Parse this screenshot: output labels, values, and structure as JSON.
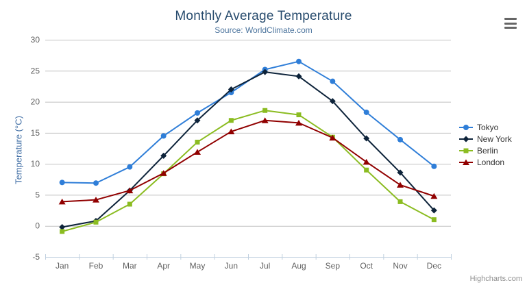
{
  "header": {
    "title": "Monthly Average Temperature",
    "subtitle": "Source: WorldClimate.com"
  },
  "credits_label": "Highcharts.com",
  "ui_colors": {
    "title": "#274b6d",
    "subtitle": "#4d759e",
    "axis_label": "#606060",
    "y_axis_title": "#4572a7",
    "grid_line": "#c0c0c0",
    "axis_line": "#c0d0e0",
    "legend_text": "#333333",
    "credits": "#909090",
    "export_icon": "#666666"
  },
  "chart_data": {
    "type": "line",
    "title": "Monthly Average Temperature",
    "subtitle": "Source: WorldClimate.com",
    "xlabel": "",
    "ylabel": "Temperature (°C)",
    "ylim": [
      -5,
      30
    ],
    "ytick_step": 5,
    "grid": true,
    "legend_position": "right",
    "categories": [
      "Jan",
      "Feb",
      "Mar",
      "Apr",
      "May",
      "Jun",
      "Jul",
      "Aug",
      "Sep",
      "Oct",
      "Nov",
      "Dec"
    ],
    "series": [
      {
        "name": "Tokyo",
        "color": "#2f7ed8",
        "marker": "circle",
        "values": [
          7.0,
          6.9,
          9.5,
          14.5,
          18.2,
          21.5,
          25.2,
          26.5,
          23.3,
          18.3,
          13.9,
          9.6
        ]
      },
      {
        "name": "New York",
        "color": "#0d233a",
        "marker": "diamond",
        "values": [
          -0.2,
          0.8,
          5.7,
          11.3,
          17.0,
          22.0,
          24.8,
          24.1,
          20.1,
          14.1,
          8.6,
          2.5
        ]
      },
      {
        "name": "Berlin",
        "color": "#8bbc21",
        "marker": "square",
        "values": [
          -0.9,
          0.6,
          3.5,
          8.4,
          13.5,
          17.0,
          18.6,
          17.9,
          14.3,
          9.0,
          3.9,
          1.0
        ]
      },
      {
        "name": "London",
        "color": "#910000",
        "marker": "triangle",
        "values": [
          3.9,
          4.2,
          5.7,
          8.5,
          11.9,
          15.2,
          17.0,
          16.6,
          14.2,
          10.3,
          6.6,
          4.8
        ]
      }
    ]
  }
}
